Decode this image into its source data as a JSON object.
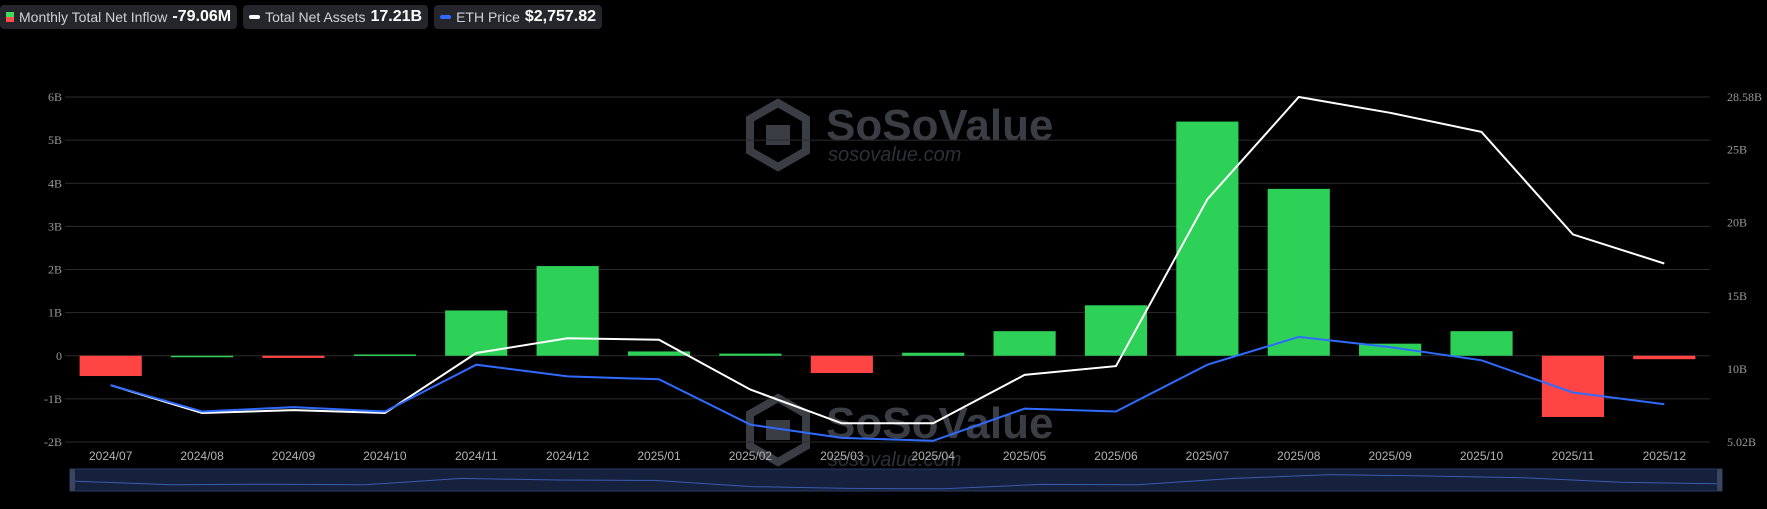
{
  "legend": {
    "inflow": {
      "label": "Monthly Total Net Inflow",
      "value": "-79.06M"
    },
    "assets": {
      "label": "Total Net Assets",
      "value": "17.21B",
      "color": "#ffffff"
    },
    "eth": {
      "label": "ETH Price",
      "value": "$2,757.82",
      "color": "#2f6bff"
    }
  },
  "watermark": {
    "name": "SoSoValue",
    "url": "sosovalue.com"
  },
  "chart_data": {
    "type": "bar",
    "categories": [
      "2024/07",
      "2024/08",
      "2024/09",
      "2024/10",
      "2024/11",
      "2024/12",
      "2025/01",
      "2025/02",
      "2025/03",
      "2025/04",
      "2025/05",
      "2025/06",
      "2025/07",
      "2025/08",
      "2025/09",
      "2025/10",
      "2025/11",
      "2025/12"
    ],
    "left_axis": {
      "ticks": [
        "6B",
        "5B",
        "4B",
        "3B",
        "2B",
        "1B",
        "0",
        "-1B",
        "-2B"
      ],
      "min": -2,
      "max": 6,
      "unit": "B"
    },
    "right_axis": {
      "ticks": [
        "28.58B",
        "25B",
        "20B",
        "15B",
        "10B",
        "5.02B"
      ],
      "min": 5.02,
      "max": 28.58,
      "unit": "B"
    },
    "positive_color": "#2ed158",
    "negative_color": "#ff4444",
    "series": [
      {
        "name": "Monthly Total Net Inflow",
        "type": "bar",
        "axis": "left",
        "values": [
          -0.47,
          0.0,
          -0.05,
          0.03,
          1.05,
          2.08,
          0.1,
          0.05,
          -0.4,
          0.07,
          0.57,
          1.17,
          5.43,
          3.87,
          0.28,
          0.57,
          -1.42,
          -0.08
        ]
      },
      {
        "name": "Total Net Assets",
        "type": "line",
        "axis": "right",
        "color": "#ffffff",
        "values": [
          8.9,
          7.0,
          7.2,
          7.0,
          11.1,
          12.1,
          12.0,
          8.6,
          6.3,
          6.3,
          9.6,
          10.2,
          21.6,
          28.58,
          27.5,
          26.2,
          19.2,
          17.21
        ]
      },
      {
        "name": "ETH Price",
        "type": "line",
        "axis": "right",
        "color": "#2f6bff",
        "values": [
          8.9,
          7.1,
          7.4,
          7.1,
          10.3,
          9.5,
          9.3,
          6.2,
          5.3,
          5.1,
          7.3,
          7.1,
          10.3,
          12.2,
          11.5,
          10.6,
          8.4,
          7.6
        ]
      }
    ],
    "grid": true,
    "legend_position": "top-left"
  }
}
